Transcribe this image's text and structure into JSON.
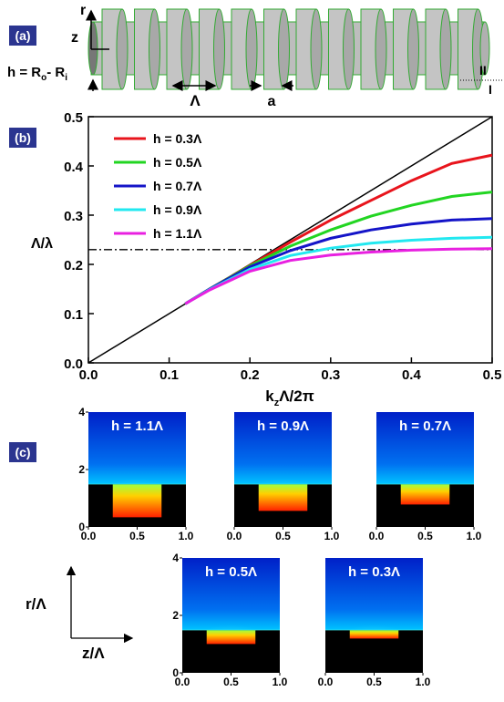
{
  "panel_a": {
    "label": "(a)",
    "r_axis": "r",
    "z_axis": "z",
    "h_text": "h = R",
    "h_sub1": "o",
    "h_mid": "- R",
    "h_sub2": "i",
    "period": "Λ",
    "gap": "a",
    "region_2": "II",
    "region_1": "I"
  },
  "chart_data": {
    "type": "line",
    "label": "(b)",
    "x_label": "k",
    "x_label_sub": "z",
    "x_label_rest": "Λ/2π",
    "annotation": "Λ/λ",
    "reference_level": 0.23,
    "light_line": {
      "x": [
        0,
        0.5
      ],
      "values": [
        0,
        0.5
      ],
      "color": "#000000"
    },
    "x": [
      0.12,
      0.15,
      0.2,
      0.25,
      0.3,
      0.35,
      0.4,
      0.45,
      0.5
    ],
    "series": [
      {
        "name": "h = 0.3Λ",
        "color": "#e8141c",
        "values": [
          0.12,
          0.15,
          0.198,
          0.245,
          0.29,
          0.33,
          0.37,
          0.405,
          0.422
        ]
      },
      {
        "name": "h = 0.5Λ",
        "color": "#22d522",
        "values": [
          0.12,
          0.15,
          0.197,
          0.237,
          0.27,
          0.298,
          0.32,
          0.338,
          0.347
        ]
      },
      {
        "name": "h = 0.7Λ",
        "color": "#1414c8",
        "values": [
          0.12,
          0.15,
          0.195,
          0.228,
          0.253,
          0.27,
          0.282,
          0.29,
          0.293
        ]
      },
      {
        "name": "h = 0.9Λ",
        "color": "#22e8f0",
        "values": [
          0.12,
          0.149,
          0.19,
          0.218,
          0.233,
          0.243,
          0.249,
          0.253,
          0.255
        ]
      },
      {
        "name": "h = 1.1Λ",
        "color": "#e820e0",
        "values": [
          0.12,
          0.148,
          0.186,
          0.208,
          0.219,
          0.225,
          0.229,
          0.231,
          0.232
        ]
      }
    ],
    "xlim": [
      0,
      0.5
    ],
    "ylim": [
      0,
      0.5
    ],
    "xticks": [
      {
        "value": 0,
        "label": "0.0"
      },
      0.1,
      0.2,
      0.3,
      0.4,
      0.5
    ],
    "yticks": [
      {
        "value": 0,
        "label": "0.0"
      },
      0.1,
      0.2,
      0.3,
      0.4,
      0.5
    ],
    "legend": "upper-left"
  },
  "panel_c": {
    "label": "(c)",
    "r_axis": "r/Λ",
    "z_axis": "z/Λ",
    "plots": [
      {
        "title": "h = 1.1Λ",
        "xlim": [
          0,
          1
        ],
        "ylim": [
          0,
          4
        ],
        "xticks": [
          {
            "value": 0,
            "label": "0.0"
          },
          0.5,
          {
            "value": 1,
            "label": "1.0"
          }
        ],
        "yticks": [
          0,
          2,
          4
        ]
      },
      {
        "title": "h = 0.9Λ",
        "xlim": [
          0,
          1
        ],
        "ylim": [
          0,
          4
        ],
        "xticks": [
          {
            "value": 0,
            "label": "0.0"
          },
          0.5,
          {
            "value": 1,
            "label": "1.0"
          }
        ]
      },
      {
        "title": "h = 0.7Λ",
        "xlim": [
          0,
          1
        ],
        "ylim": [
          0,
          4
        ],
        "xticks": [
          {
            "value": 0,
            "label": "0.0"
          },
          0.5,
          {
            "value": 1,
            "label": "1.0"
          }
        ]
      },
      {
        "title": "h = 0.5Λ",
        "xlim": [
          0,
          1
        ],
        "ylim": [
          0,
          4
        ],
        "xticks": [
          {
            "value": 0,
            "label": "0.0"
          },
          0.5,
          {
            "value": 1,
            "label": "1.0"
          }
        ],
        "yticks": [
          0,
          2,
          4
        ]
      },
      {
        "title": "h = 0.3Λ",
        "xlim": [
          0,
          1
        ],
        "ylim": [
          0,
          4
        ],
        "xticks": [
          {
            "value": 0,
            "label": "0.0"
          },
          0.5,
          {
            "value": 1,
            "label": "1.0"
          }
        ]
      }
    ]
  }
}
